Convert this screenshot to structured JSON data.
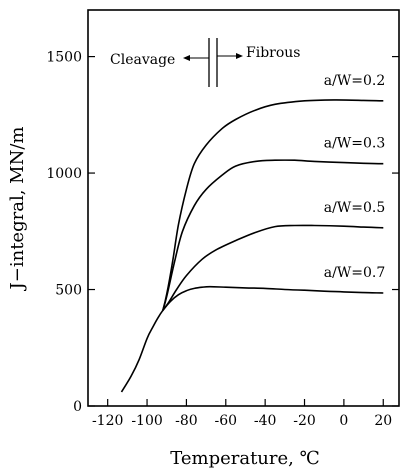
{
  "chart_data": {
    "type": "line",
    "xlabel": "Temperature, ℃",
    "ylabel": "J−integral, MN/m",
    "xlim": [
      -130,
      28
    ],
    "ylim": [
      0,
      1700
    ],
    "xticks": [
      -120,
      -100,
      -80,
      -60,
      -40,
      -20,
      0,
      20
    ],
    "yticks": [
      0,
      500,
      1000,
      1500
    ],
    "xtick_labels": [
      "-120",
      "-100",
      "-80",
      "-60",
      "-40",
      "-20",
      "0",
      "20"
    ],
    "ytick_labels": [
      "0",
      "500",
      "1000",
      "1500"
    ],
    "grid": false,
    "legend": "none",
    "annotations": {
      "cleavage": "Cleavage",
      "fibrous": "Fibrous"
    },
    "shared_curve": {
      "name": "",
      "x": [
        -113,
        -108,
        -104,
        -100,
        -97,
        -94,
        -92
      ],
      "y": [
        60,
        130,
        200,
        290,
        340,
        385,
        410
      ]
    },
    "series": [
      {
        "name": "a/W=0.2",
        "x": [
          -92,
          -90,
          -87,
          -84,
          -80,
          -76,
          -70,
          -62,
          -55,
          -45,
          -35,
          -20,
          -5,
          10,
          20
        ],
        "y": [
          410,
          480,
          620,
          780,
          930,
          1040,
          1120,
          1190,
          1230,
          1270,
          1295,
          1310,
          1314,
          1312,
          1310
        ]
      },
      {
        "name": "a/W=0.3",
        "x": [
          -92,
          -90,
          -86,
          -82,
          -76,
          -70,
          -62,
          -55,
          -45,
          -35,
          -25,
          -15,
          0,
          10,
          20
        ],
        "y": [
          410,
          470,
          620,
          750,
          860,
          930,
          990,
          1030,
          1050,
          1055,
          1055,
          1050,
          1045,
          1042,
          1040
        ]
      },
      {
        "name": "a/W=0.5",
        "x": [
          -92,
          -89,
          -85,
          -80,
          -72,
          -65,
          -55,
          -45,
          -35,
          -25,
          -15,
          0,
          10,
          20
        ],
        "y": [
          410,
          445,
          500,
          560,
          630,
          670,
          710,
          745,
          770,
          775,
          775,
          772,
          768,
          765
        ]
      },
      {
        "name": "a/W=0.7",
        "x": [
          -92,
          -88,
          -84,
          -80,
          -76,
          -72,
          -68,
          -60,
          -50,
          -40,
          -30,
          -20,
          -10,
          0,
          10,
          20
        ],
        "y": [
          410,
          450,
          478,
          495,
          505,
          510,
          512,
          510,
          507,
          505,
          500,
          497,
          493,
          490,
          487,
          485
        ]
      }
    ]
  }
}
